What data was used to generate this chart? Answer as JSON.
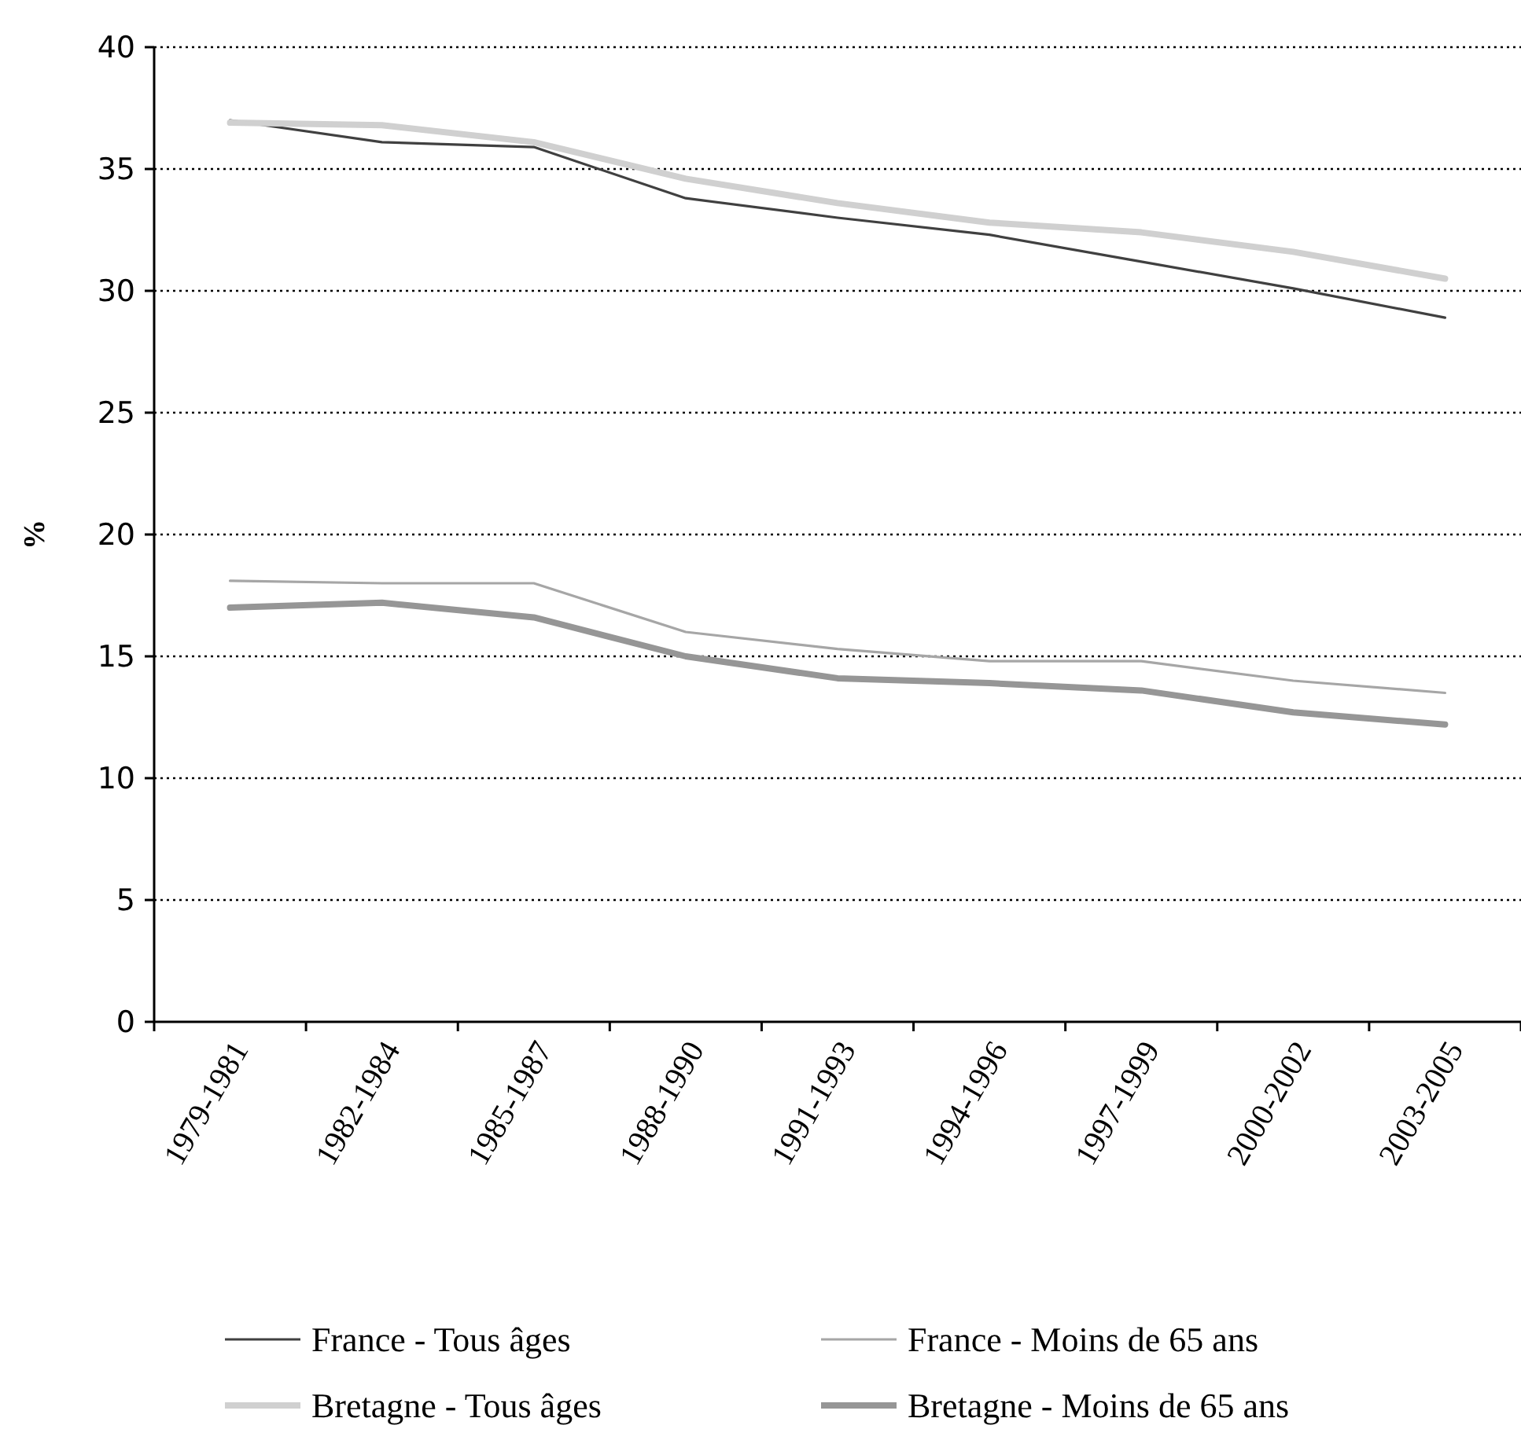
{
  "chart_data": {
    "type": "line",
    "ylabel": "%",
    "categories": [
      "1979-1981",
      "1982-1984",
      "1985-1987",
      "1988-1990",
      "1991-1993",
      "1994-1996",
      "1997-1999",
      "2000-2002",
      "2003-2005"
    ],
    "series": [
      {
        "name": "France - Tous âges",
        "color": "#404040",
        "values": [
          37.0,
          36.1,
          35.9,
          33.8,
          33.0,
          32.3,
          31.2,
          30.1,
          28.9
        ]
      },
      {
        "name": "France - Moins de 65 ans",
        "color": "#a6a6a6",
        "values": [
          18.1,
          18.0,
          18.0,
          16.0,
          15.3,
          14.8,
          14.8,
          14.0,
          13.5
        ]
      },
      {
        "name": "Bretagne - Tous âges",
        "color": "#d0d0d0",
        "values": [
          36.9,
          36.8,
          36.1,
          34.6,
          33.6,
          32.8,
          32.4,
          31.6,
          30.5
        ]
      },
      {
        "name": "Bretagne - Moins de 65 ans",
        "color": "#969696",
        "values": [
          17.0,
          17.2,
          16.6,
          15.0,
          14.1,
          13.9,
          13.6,
          12.7,
          12.2
        ]
      }
    ],
    "ylim": [
      0,
      40
    ],
    "yticks": [
      0,
      5,
      10,
      15,
      20,
      25,
      30,
      35,
      40
    ],
    "grid": "y",
    "legend": "bottom",
    "marker": "none",
    "line_style": "solid"
  }
}
